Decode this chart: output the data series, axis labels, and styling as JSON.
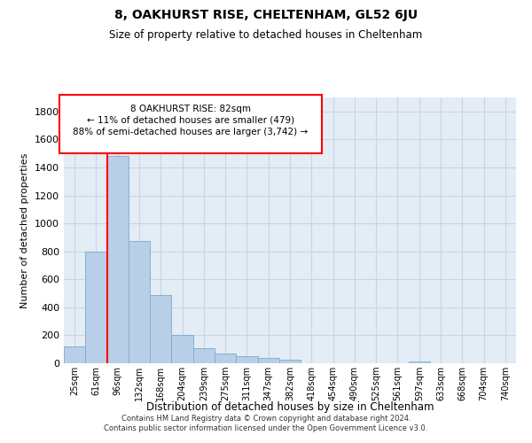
{
  "title1": "8, OAKHURST RISE, CHELTENHAM, GL52 6JU",
  "title2": "Size of property relative to detached houses in Cheltenham",
  "xlabel": "Distribution of detached houses by size in Cheltenham",
  "ylabel": "Number of detached properties",
  "categories": [
    "25sqm",
    "61sqm",
    "96sqm",
    "132sqm",
    "168sqm",
    "204sqm",
    "239sqm",
    "275sqm",
    "311sqm",
    "347sqm",
    "382sqm",
    "418sqm",
    "454sqm",
    "490sqm",
    "525sqm",
    "561sqm",
    "597sqm",
    "633sqm",
    "668sqm",
    "704sqm",
    "740sqm"
  ],
  "values": [
    120,
    800,
    1480,
    875,
    490,
    205,
    110,
    70,
    50,
    35,
    25,
    0,
    0,
    0,
    0,
    0,
    15,
    0,
    0,
    0,
    0
  ],
  "bar_color": "#b8cfe8",
  "bar_edge_color": "#7aaad0",
  "annotation_text": [
    "8 OAKHURST RISE: 82sqm",
    "← 11% of detached houses are smaller (479)",
    "88% of semi-detached houses are larger (3,742) →"
  ],
  "annotation_box_color": "white",
  "annotation_box_edge_color": "red",
  "vline_color": "red",
  "ylim": [
    0,
    1900
  ],
  "yticks": [
    0,
    200,
    400,
    600,
    800,
    1000,
    1200,
    1400,
    1600,
    1800
  ],
  "grid_color": "#c8d4e8",
  "bg_color": "#e4ecf5",
  "footer": "Contains HM Land Registry data © Crown copyright and database right 2024.\nContains public sector information licensed under the Open Government Licence v3.0."
}
